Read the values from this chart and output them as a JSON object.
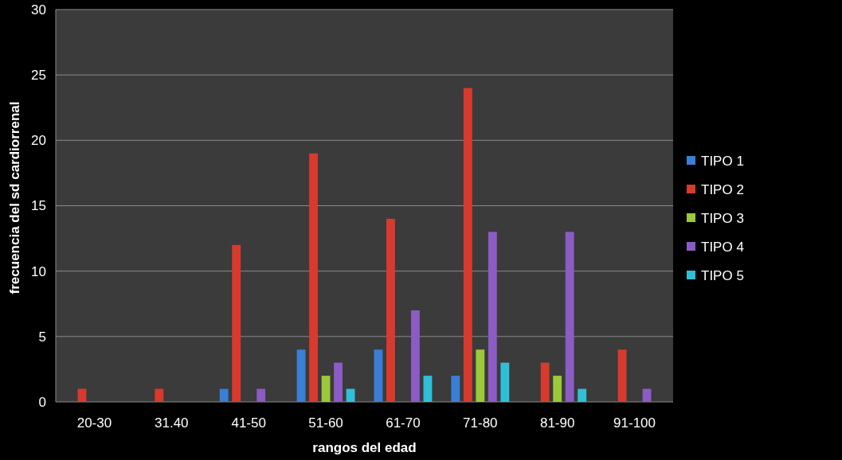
{
  "chart_data": {
    "type": "bar",
    "xlabel": "rangos del edad",
    "ylabel": "frecuencia del sd cardiorrenal",
    "categories": [
      "20-30",
      "31.40",
      "41-50",
      "51-60",
      "61-70",
      "71-80",
      "81-90",
      "91-100"
    ],
    "series": [
      {
        "name": "TIPO 1",
        "color": "#3a7fd5",
        "values": [
          null,
          null,
          1,
          4,
          4,
          2,
          null,
          null
        ]
      },
      {
        "name": "TIPO 2",
        "color": "#d83a2e",
        "values": [
          1,
          1,
          12,
          19,
          14,
          24,
          3,
          4
        ]
      },
      {
        "name": "TIPO 3",
        "color": "#9bc93a",
        "values": [
          null,
          null,
          null,
          2,
          null,
          4,
          2,
          null
        ]
      },
      {
        "name": "TIPO 4",
        "color": "#8a5cc4",
        "values": [
          null,
          null,
          1,
          3,
          7,
          13,
          13,
          1
        ]
      },
      {
        "name": "TIPO 5",
        "color": "#2fc0d8",
        "values": [
          null,
          null,
          null,
          1,
          2,
          3,
          1,
          null
        ]
      }
    ],
    "ylim": [
      0,
      30
    ],
    "yticks": [
      0,
      5,
      10,
      15,
      20,
      25,
      30
    ],
    "grid": "y",
    "legend": "right"
  }
}
